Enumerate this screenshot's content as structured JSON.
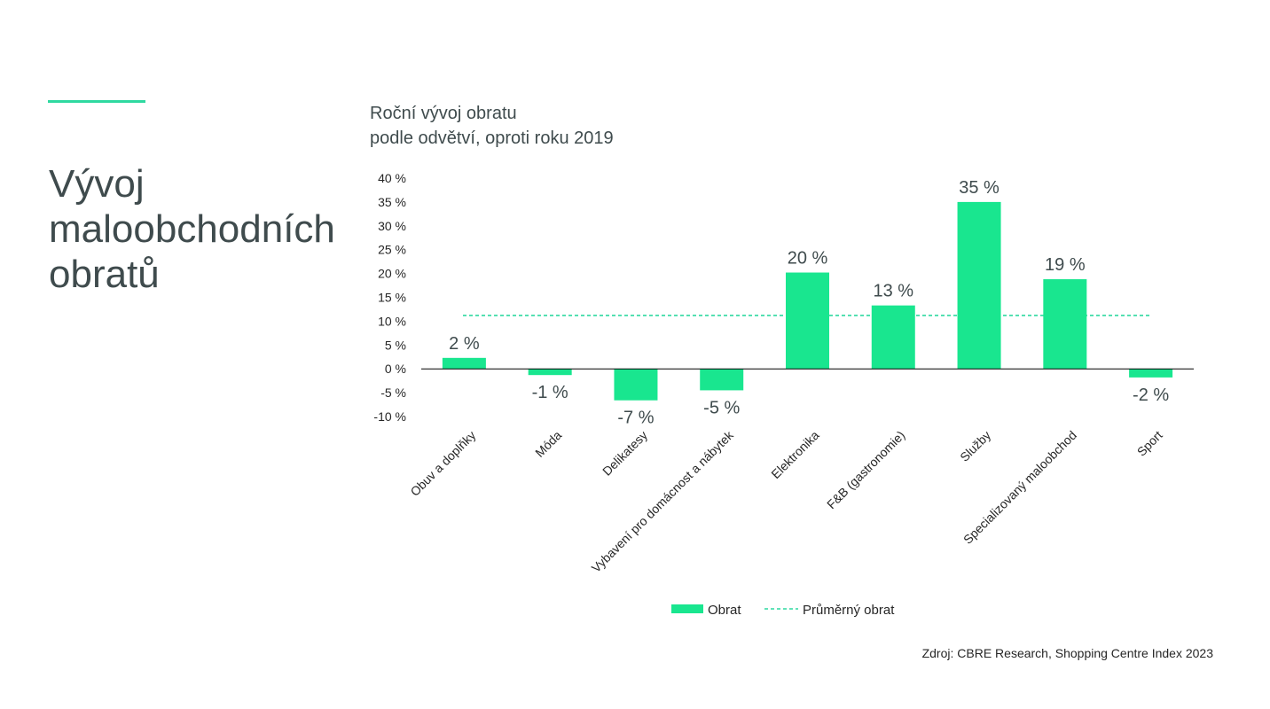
{
  "slide": {
    "title_lines": [
      "Vývoj",
      "maloobchodních",
      "obratů"
    ]
  },
  "chart_title_lines": [
    "Roční vývoj obratu",
    "podle odvětví, oproti roku 2019"
  ],
  "source": "Zdroj: CBRE Research, Shopping Centre Index 2023",
  "colors": {
    "accent": "#2fd9a0",
    "bar": "#19e68f",
    "average_line": "#2fd9a0",
    "text": "#3f4b4d"
  },
  "chart_data": {
    "type": "bar",
    "categories": [
      "Obuv a doplňky",
      "Móda",
      "Delikatesy",
      "Vybavení pro domácnost a nábytek",
      "Elektronika",
      "F&B (gastronomie)",
      "Služby",
      "Specializovaný maloobchod",
      "Sport"
    ],
    "series": [
      {
        "name": "Obrat",
        "values": [
          2.3,
          -1.3,
          -6.6,
          -4.5,
          20.2,
          13.3,
          35,
          18.8,
          -1.8
        ]
      }
    ],
    "data_labels": [
      "2 %",
      "-1 %",
      "-7 %",
      "-5 %",
      "20 %",
      "13 %",
      "35 %",
      "19 %",
      "-2 %"
    ],
    "average": {
      "name": "Průměrný obrat",
      "value": 11.2
    },
    "ylim": [
      -10,
      40
    ],
    "yticks": [
      40,
      35,
      30,
      25,
      20,
      15,
      10,
      5,
      0,
      -5,
      -10
    ],
    "ytick_labels": [
      "40 %",
      "35 %",
      "30 %",
      "25 %",
      "20 %",
      "15 %",
      "10 %",
      "5 %",
      "0 %",
      "-5 %",
      "-10 %"
    ],
    "legend_position": "bottom",
    "grid": false
  }
}
